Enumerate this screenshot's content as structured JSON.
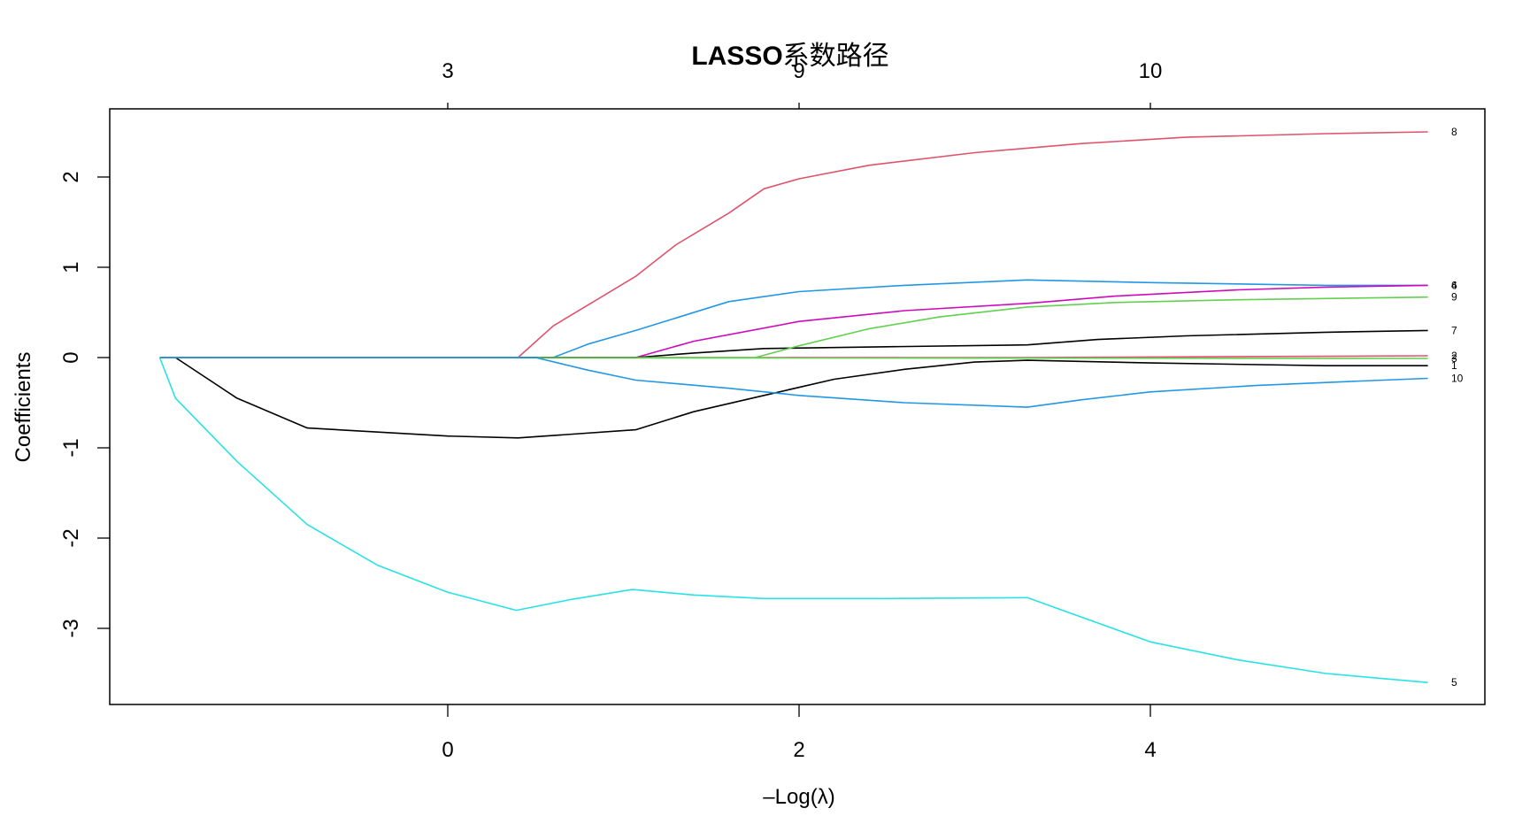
{
  "chart_data": {
    "type": "line",
    "title": "LASSO系数路径",
    "xlabel": "-Log(λ)",
    "ylabel": "Coefficients",
    "xlim": [
      -1.92,
      5.9
    ],
    "ylim": [
      -3.8,
      2.75
    ],
    "x_ticks": [
      0,
      2,
      4
    ],
    "x_tick_labels": [
      "0",
      "2",
      "4"
    ],
    "y_ticks": [
      -3,
      -2,
      -1,
      0,
      1,
      2
    ],
    "y_tick_labels": [
      "-3",
      "-2",
      "-1",
      "0",
      "1",
      "2"
    ],
    "top_axis": {
      "description": "number of nonzero coefficients",
      "ticks": [
        0,
        2,
        4
      ],
      "labels": [
        "3",
        "9",
        "10"
      ]
    },
    "grid": false,
    "legend": "none (curve labels at right end)",
    "series": [
      {
        "name": "1",
        "color": "#000000",
        "points": [
          [
            -1.64,
            0
          ],
          [
            -1.55,
            0
          ],
          [
            -1.2,
            -0.45
          ],
          [
            -0.8,
            -0.78
          ],
          [
            0,
            -0.87
          ],
          [
            0.4,
            -0.89
          ],
          [
            1.07,
            -0.8
          ],
          [
            1.4,
            -0.6
          ],
          [
            1.8,
            -0.42
          ],
          [
            2.2,
            -0.24
          ],
          [
            2.6,
            -0.13
          ],
          [
            3.0,
            -0.05
          ],
          [
            3.3,
            -0.03
          ],
          [
            4.0,
            -0.06
          ],
          [
            5.0,
            -0.09
          ],
          [
            5.58,
            -0.09
          ]
        ]
      },
      {
        "name": "2",
        "color": "#DF536B",
        "points": [
          [
            -1.64,
            0
          ],
          [
            3.3,
            0
          ],
          [
            5.58,
            0.02
          ]
        ]
      },
      {
        "name": "3",
        "color": "#61D04F",
        "points": [
          [
            -1.64,
            0
          ],
          [
            5.58,
            -0.01
          ]
        ]
      },
      {
        "name": "4",
        "color": "#2297E6",
        "points": [
          [
            -1.64,
            0
          ],
          [
            0.6,
            0
          ],
          [
            0.8,
            0.15
          ],
          [
            1.07,
            0.3
          ],
          [
            1.6,
            0.62
          ],
          [
            2.0,
            0.73
          ],
          [
            2.6,
            0.8
          ],
          [
            3.3,
            0.86
          ],
          [
            4.0,
            0.83
          ],
          [
            5.0,
            0.8
          ],
          [
            5.58,
            0.8
          ]
        ]
      },
      {
        "name": "5",
        "color": "#28E2E5",
        "points": [
          [
            -1.64,
            0
          ],
          [
            -1.55,
            -0.45
          ],
          [
            -1.2,
            -1.15
          ],
          [
            -0.8,
            -1.85
          ],
          [
            -0.4,
            -2.3
          ],
          [
            0,
            -2.6
          ],
          [
            0.39,
            -2.8
          ],
          [
            0.7,
            -2.68
          ],
          [
            1.05,
            -2.57
          ],
          [
            1.4,
            -2.63
          ],
          [
            1.8,
            -2.67
          ],
          [
            2.5,
            -2.67
          ],
          [
            3.3,
            -2.66
          ],
          [
            3.5,
            -2.8
          ],
          [
            4.0,
            -3.15
          ],
          [
            4.5,
            -3.35
          ],
          [
            5.0,
            -3.5
          ],
          [
            5.58,
            -3.6
          ]
        ]
      },
      {
        "name": "6",
        "color": "#CD0BBC",
        "points": [
          [
            -1.64,
            0
          ],
          [
            1.07,
            0
          ],
          [
            1.4,
            0.18
          ],
          [
            2.0,
            0.4
          ],
          [
            2.6,
            0.52
          ],
          [
            3.3,
            0.6
          ],
          [
            3.8,
            0.68
          ],
          [
            4.5,
            0.75
          ],
          [
            5.0,
            0.78
          ],
          [
            5.58,
            0.8
          ]
        ]
      },
      {
        "name": "7",
        "color": "#000000",
        "points": [
          [
            -1.64,
            0
          ],
          [
            1.07,
            0
          ],
          [
            1.4,
            0.05
          ],
          [
            1.8,
            0.1
          ],
          [
            2.5,
            0.12
          ],
          [
            3.3,
            0.14
          ],
          [
            3.7,
            0.2
          ],
          [
            4.2,
            0.24
          ],
          [
            5.0,
            0.28
          ],
          [
            5.58,
            0.3
          ]
        ]
      },
      {
        "name": "8",
        "color": "#DF536B",
        "points": [
          [
            -1.64,
            0
          ],
          [
            0.4,
            0
          ],
          [
            0.6,
            0.35
          ],
          [
            0.9,
            0.7
          ],
          [
            1.07,
            0.9
          ],
          [
            1.3,
            1.25
          ],
          [
            1.6,
            1.6
          ],
          [
            1.8,
            1.87
          ],
          [
            2.0,
            1.98
          ],
          [
            2.4,
            2.13
          ],
          [
            3.0,
            2.27
          ],
          [
            3.6,
            2.37
          ],
          [
            4.2,
            2.44
          ],
          [
            5.0,
            2.48
          ],
          [
            5.58,
            2.5
          ]
        ]
      },
      {
        "name": "9",
        "color": "#61D04F",
        "points": [
          [
            -1.64,
            0
          ],
          [
            1.75,
            0
          ],
          [
            2.0,
            0.13
          ],
          [
            2.4,
            0.32
          ],
          [
            2.8,
            0.45
          ],
          [
            3.3,
            0.56
          ],
          [
            3.8,
            0.61
          ],
          [
            4.5,
            0.64
          ],
          [
            5.58,
            0.67
          ]
        ]
      },
      {
        "name": "10",
        "color": "#2297E6",
        "points": [
          [
            -1.64,
            0
          ],
          [
            0.5,
            0
          ],
          [
            0.8,
            -0.14
          ],
          [
            1.07,
            -0.25
          ],
          [
            1.6,
            -0.34
          ],
          [
            2.0,
            -0.42
          ],
          [
            2.6,
            -0.5
          ],
          [
            3.3,
            -0.55
          ],
          [
            3.6,
            -0.47
          ],
          [
            4.0,
            -0.38
          ],
          [
            4.6,
            -0.31
          ],
          [
            5.2,
            -0.26
          ],
          [
            5.58,
            -0.23
          ]
        ]
      }
    ],
    "end_labels": [
      {
        "label": "8",
        "y": 2.5
      },
      {
        "label": "4",
        "y": 0.8
      },
      {
        "label": "6",
        "y": 0.8
      },
      {
        "label": "9",
        "y": 0.67
      },
      {
        "label": "7",
        "y": 0.3
      },
      {
        "label": "2",
        "y": 0.02
      },
      {
        "label": "3",
        "y": -0.01
      },
      {
        "label": "1",
        "y": -0.09
      },
      {
        "label": "10",
        "y": -0.23
      },
      {
        "label": "5",
        "y": -3.6
      }
    ]
  },
  "labels": {
    "title_latin": "LASSO",
    "title_cjk": "系数路径",
    "xlabel_minus": "–",
    "xlabel_rest": "Log(λ)",
    "ylabel": "Coefficients"
  }
}
